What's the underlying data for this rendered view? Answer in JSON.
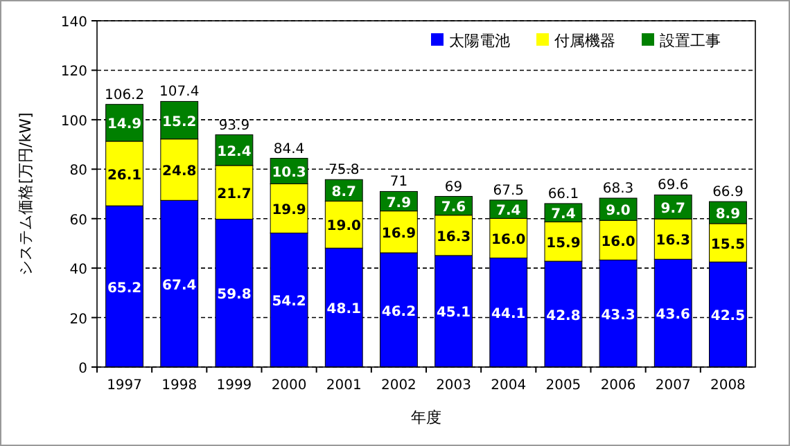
{
  "chart_data": {
    "type": "bar",
    "stacked": true,
    "xlabel": "年度",
    "ylabel": "システム価格[万円/kW]",
    "categories": [
      "1997",
      "1998",
      "1999",
      "2000",
      "2001",
      "2002",
      "2003",
      "2004",
      "2005",
      "2006",
      "2007",
      "2008"
    ],
    "series": [
      {
        "name": "太陽電池",
        "color": "#0000ff",
        "values": [
          65.2,
          67.4,
          59.8,
          54.2,
          48.1,
          46.2,
          45.1,
          44.1,
          42.8,
          43.3,
          43.6,
          42.5
        ],
        "value_labels": [
          "65.2",
          "67.4",
          "59.8",
          "54.2",
          "48.1",
          "46.2",
          "45.1",
          "44.1",
          "42.8",
          "43.3",
          "43.6",
          "42.5"
        ]
      },
      {
        "name": "付属機器",
        "color": "#ffff00",
        "values": [
          26.1,
          24.8,
          21.7,
          19.9,
          19.0,
          16.9,
          16.3,
          16.0,
          15.9,
          16.0,
          16.3,
          15.5
        ],
        "value_labels": [
          "26.1",
          "24.8",
          "21.7",
          "19.9",
          "19.0",
          "16.9",
          "16.3",
          "16.0",
          "15.9",
          "16.0",
          "16.3",
          "15.5"
        ]
      },
      {
        "name": "設置工事",
        "color": "#008000",
        "values": [
          14.9,
          15.2,
          12.4,
          10.3,
          8.7,
          7.9,
          7.6,
          7.4,
          7.4,
          9.0,
          9.7,
          8.9
        ],
        "value_labels": [
          "14.9",
          "15.2",
          "12.4",
          "10.3",
          "8.7",
          "7.9",
          "7.6",
          "7.4",
          "7.4",
          "9.0",
          "9.7",
          "8.9"
        ]
      }
    ],
    "totals": [
      "106.2",
      "107.4",
      "93.9",
      "84.4",
      "75.8",
      "71",
      "69",
      "67.5",
      "66.1",
      "68.3",
      "69.6",
      "66.9"
    ],
    "ylim": [
      0,
      140
    ],
    "yticks": [
      0,
      20,
      40,
      60,
      80,
      100,
      120,
      140
    ],
    "grid": "y",
    "legend": "top right"
  }
}
